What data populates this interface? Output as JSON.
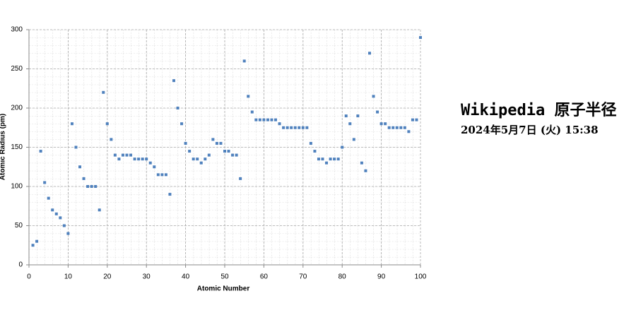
{
  "chart_data": {
    "type": "scatter",
    "title": "Wikipedia  原子半径",
    "subtitle": "2024年5月7日 (火) 15:38",
    "x_label": "Atomic Number",
    "y_label": "Atomic Radius (pm)",
    "color": "#4f81bd",
    "grid": true,
    "minor_grid": {
      "x": 2,
      "y": 10
    },
    "xlim": [
      0,
      100
    ],
    "xticks": [
      0,
      10,
      20,
      30,
      40,
      50,
      60,
      70,
      80,
      90,
      100
    ],
    "ylim": [
      0,
      300
    ],
    "yticks": [
      0,
      50,
      100,
      150,
      200,
      250,
      300
    ],
    "x": [
      1,
      2,
      3,
      4,
      5,
      6,
      7,
      8,
      9,
      10,
      11,
      12,
      13,
      14,
      15,
      16,
      17,
      18,
      19,
      20,
      21,
      22,
      23,
      24,
      25,
      26,
      27,
      28,
      29,
      30,
      31,
      32,
      33,
      34,
      35,
      36,
      37,
      38,
      39,
      40,
      41,
      42,
      43,
      44,
      45,
      46,
      47,
      48,
      49,
      50,
      51,
      52,
      53,
      54,
      55,
      56,
      57,
      58,
      59,
      60,
      61,
      62,
      63,
      64,
      65,
      66,
      67,
      68,
      69,
      70,
      71,
      72,
      73,
      74,
      75,
      76,
      77,
      78,
      79,
      80,
      81,
      82,
      83,
      84,
      85,
      86,
      87,
      88,
      89,
      90,
      91,
      92,
      93,
      94,
      95,
      96,
      97,
      98,
      99,
      100
    ],
    "values": [
      25,
      30,
      145,
      105,
      85,
      70,
      65,
      60,
      50,
      40,
      180,
      150,
      125,
      110,
      100,
      100,
      100,
      70,
      220,
      180,
      160,
      140,
      135,
      140,
      140,
      140,
      135,
      135,
      135,
      135,
      130,
      125,
      115,
      115,
      115,
      90,
      235,
      200,
      180,
      155,
      145,
      135,
      135,
      130,
      135,
      140,
      160,
      155,
      155,
      145,
      145,
      140,
      140,
      110,
      260,
      215,
      195,
      185,
      185,
      185,
      185,
      185,
      185,
      180,
      175,
      175,
      175,
      175,
      175,
      175,
      175,
      155,
      145,
      135,
      135,
      130,
      135,
      135,
      135,
      150,
      190,
      180,
      160,
      190,
      130,
      120,
      270,
      215,
      195,
      180,
      180,
      175,
      175,
      175,
      175,
      175,
      170,
      185,
      185,
      290
    ]
  }
}
